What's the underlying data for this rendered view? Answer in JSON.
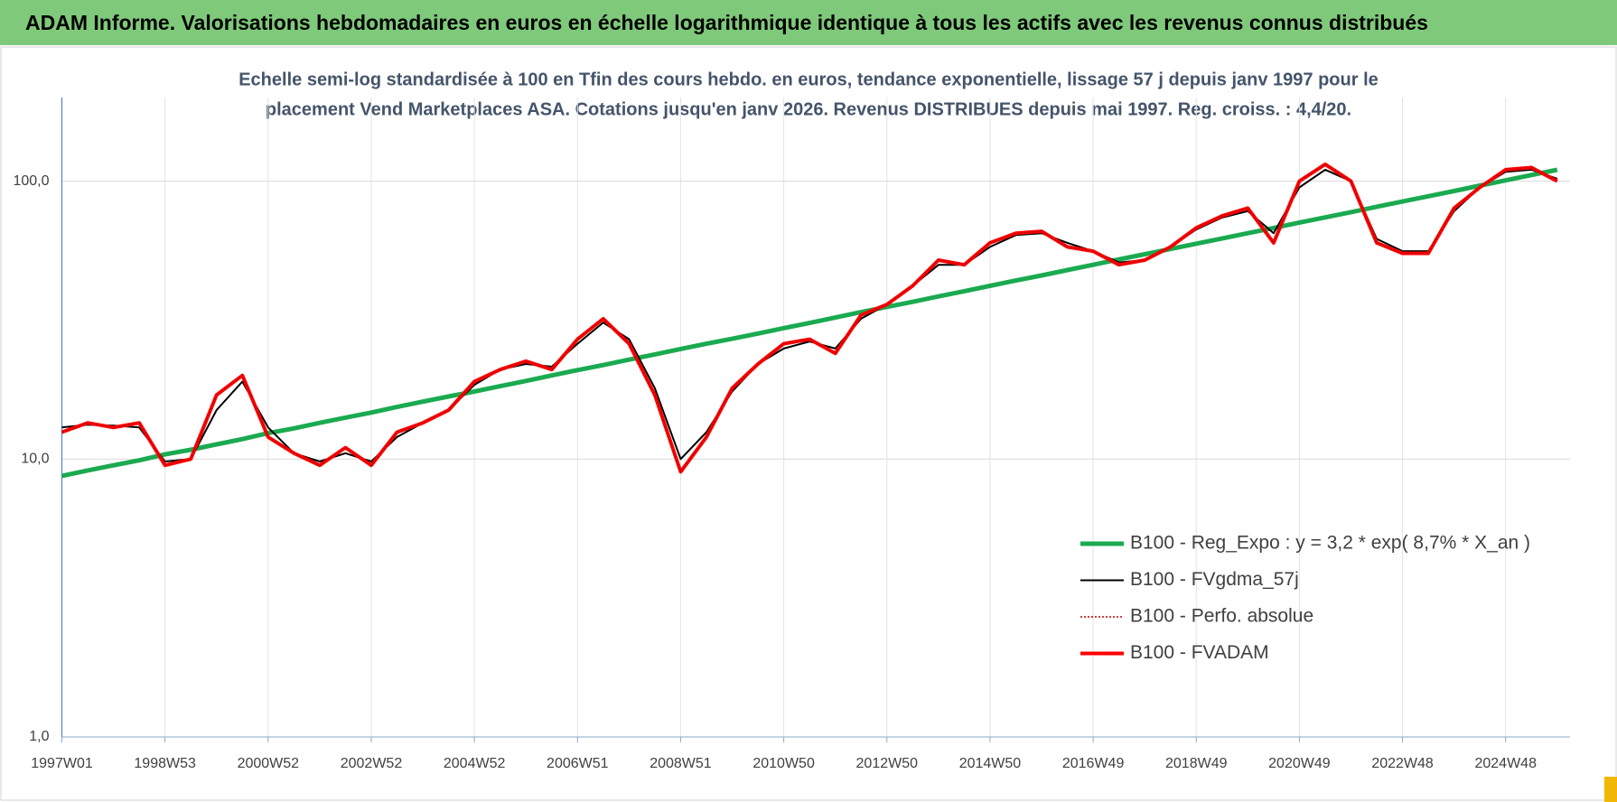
{
  "header": {
    "title": "ADAM Informe. Valorisations hebdomadaires en euros en échelle logarithmique identique à tous les actifs avec les revenus connus distribués"
  },
  "chart_data": {
    "type": "line",
    "title": [
      "Echelle semi-log standardisée à 100 en Tfin des cours hebdo. en euros, tendance exponentielle, lissage 57 j depuis janv 1997 pour le",
      "placement Vend Marketplaces ASA. Cotations jusqu'en janv 2026. Revenus DISTRIBUES depuis mai 1997. Reg. croiss. : 4,4/20."
    ],
    "categories": [
      "1997W01",
      null,
      null,
      null,
      "1998W53",
      null,
      null,
      null,
      "2000W52",
      null,
      null,
      null,
      "2002W52",
      null,
      null,
      null,
      "2004W52",
      null,
      null,
      null,
      "2006W51",
      null,
      null,
      null,
      "2008W51",
      null,
      null,
      null,
      "2010W50",
      null,
      null,
      null,
      "2012W50",
      null,
      null,
      null,
      "2014W50",
      null,
      null,
      null,
      "2016W49",
      null,
      null,
      null,
      "2018W49",
      null,
      null,
      null,
      "2020W49",
      null,
      null,
      null,
      "2022W48",
      null,
      null,
      null,
      "2024W48",
      null,
      null
    ],
    "log_scale": true,
    "grid": true,
    "legend_position": "right",
    "ylim": [
      1,
      200
    ],
    "yticks": [
      {
        "value": 1,
        "label": "1,0"
      },
      {
        "value": 10,
        "label": "10,0"
      },
      {
        "value": 100,
        "label": "100,0"
      }
    ],
    "series": [
      {
        "name": "B100 - Reg_Expo : y = 3,2 * exp( 8,7% *  X_an )",
        "color": "#1aaa50",
        "width": 5,
        "dash": false,
        "values": [
          8.7,
          9.1,
          9.5,
          9.9,
          10.4,
          10.8,
          11.3,
          11.8,
          12.4,
          12.9,
          13.5,
          14.1,
          14.7,
          15.4,
          16.1,
          16.8,
          17.5,
          18.3,
          19.1,
          20.0,
          20.9,
          21.8,
          22.8,
          23.8,
          24.9,
          26.0,
          27.1,
          28.3,
          29.6,
          30.9,
          32.3,
          33.8,
          35.3,
          36.8,
          38.5,
          40.2,
          42.0,
          43.9,
          45.8,
          47.9,
          50.0,
          52.3,
          54.6,
          57.0,
          59.6,
          62.2,
          65.0,
          67.9,
          71.0,
          74.1,
          77.4,
          80.9,
          84.5,
          88.3,
          92.2,
          96.4,
          100.7,
          105.2,
          109.9
        ]
      },
      {
        "name": "B100 - FVgdma_57j",
        "color": "#000000",
        "width": 2,
        "dash": false,
        "values": [
          13,
          13.3,
          13.2,
          13,
          9.8,
          10,
          15,
          19,
          13,
          10.5,
          9.8,
          10.5,
          9.8,
          12,
          13.5,
          15,
          18.5,
          21,
          22,
          21.5,
          26,
          31,
          27,
          18,
          10,
          12.5,
          17.5,
          22,
          25,
          26.5,
          25,
          32,
          36,
          42,
          50,
          50,
          58,
          64,
          65,
          60,
          56,
          51,
          52,
          58,
          67,
          74,
          78,
          65,
          95,
          110,
          100,
          62,
          56,
          56,
          78,
          95,
          108,
          110,
          102
        ]
      },
      {
        "name": "B100 - Perfo. absolue",
        "color": "#c00000",
        "width": 1.5,
        "dash": true,
        "values": [
          12.5,
          13.5,
          13,
          13.5,
          9.5,
          10,
          17,
          20,
          12,
          10.5,
          9.5,
          11,
          9.5,
          12.5,
          13.5,
          15,
          19,
          21,
          22.5,
          21,
          27,
          32,
          26,
          17,
          9,
          12,
          18,
          22,
          26,
          27,
          24,
          33,
          36,
          42,
          52,
          50,
          60,
          65,
          66,
          58,
          56,
          50,
          52,
          58,
          68,
          75,
          80,
          60,
          100,
          115,
          100,
          60,
          55,
          55,
          80,
          95,
          110,
          112,
          100
        ]
      },
      {
        "name": "B100 - FVADAM",
        "color": "#ff0000",
        "width": 4,
        "dash": false,
        "values": [
          12.5,
          13.5,
          13,
          13.5,
          9.5,
          10,
          17,
          20,
          12,
          10.5,
          9.5,
          11,
          9.5,
          12.5,
          13.5,
          15,
          19,
          21,
          22.5,
          21,
          27,
          32,
          26,
          17,
          9,
          12,
          18,
          22,
          26,
          27,
          24,
          33,
          36,
          42,
          52,
          50,
          60,
          65,
          66,
          58,
          56,
          50,
          52,
          58,
          68,
          75,
          80,
          60,
          100,
          115,
          100,
          60,
          55,
          55,
          80,
          95,
          110,
          112,
          100
        ]
      }
    ]
  }
}
